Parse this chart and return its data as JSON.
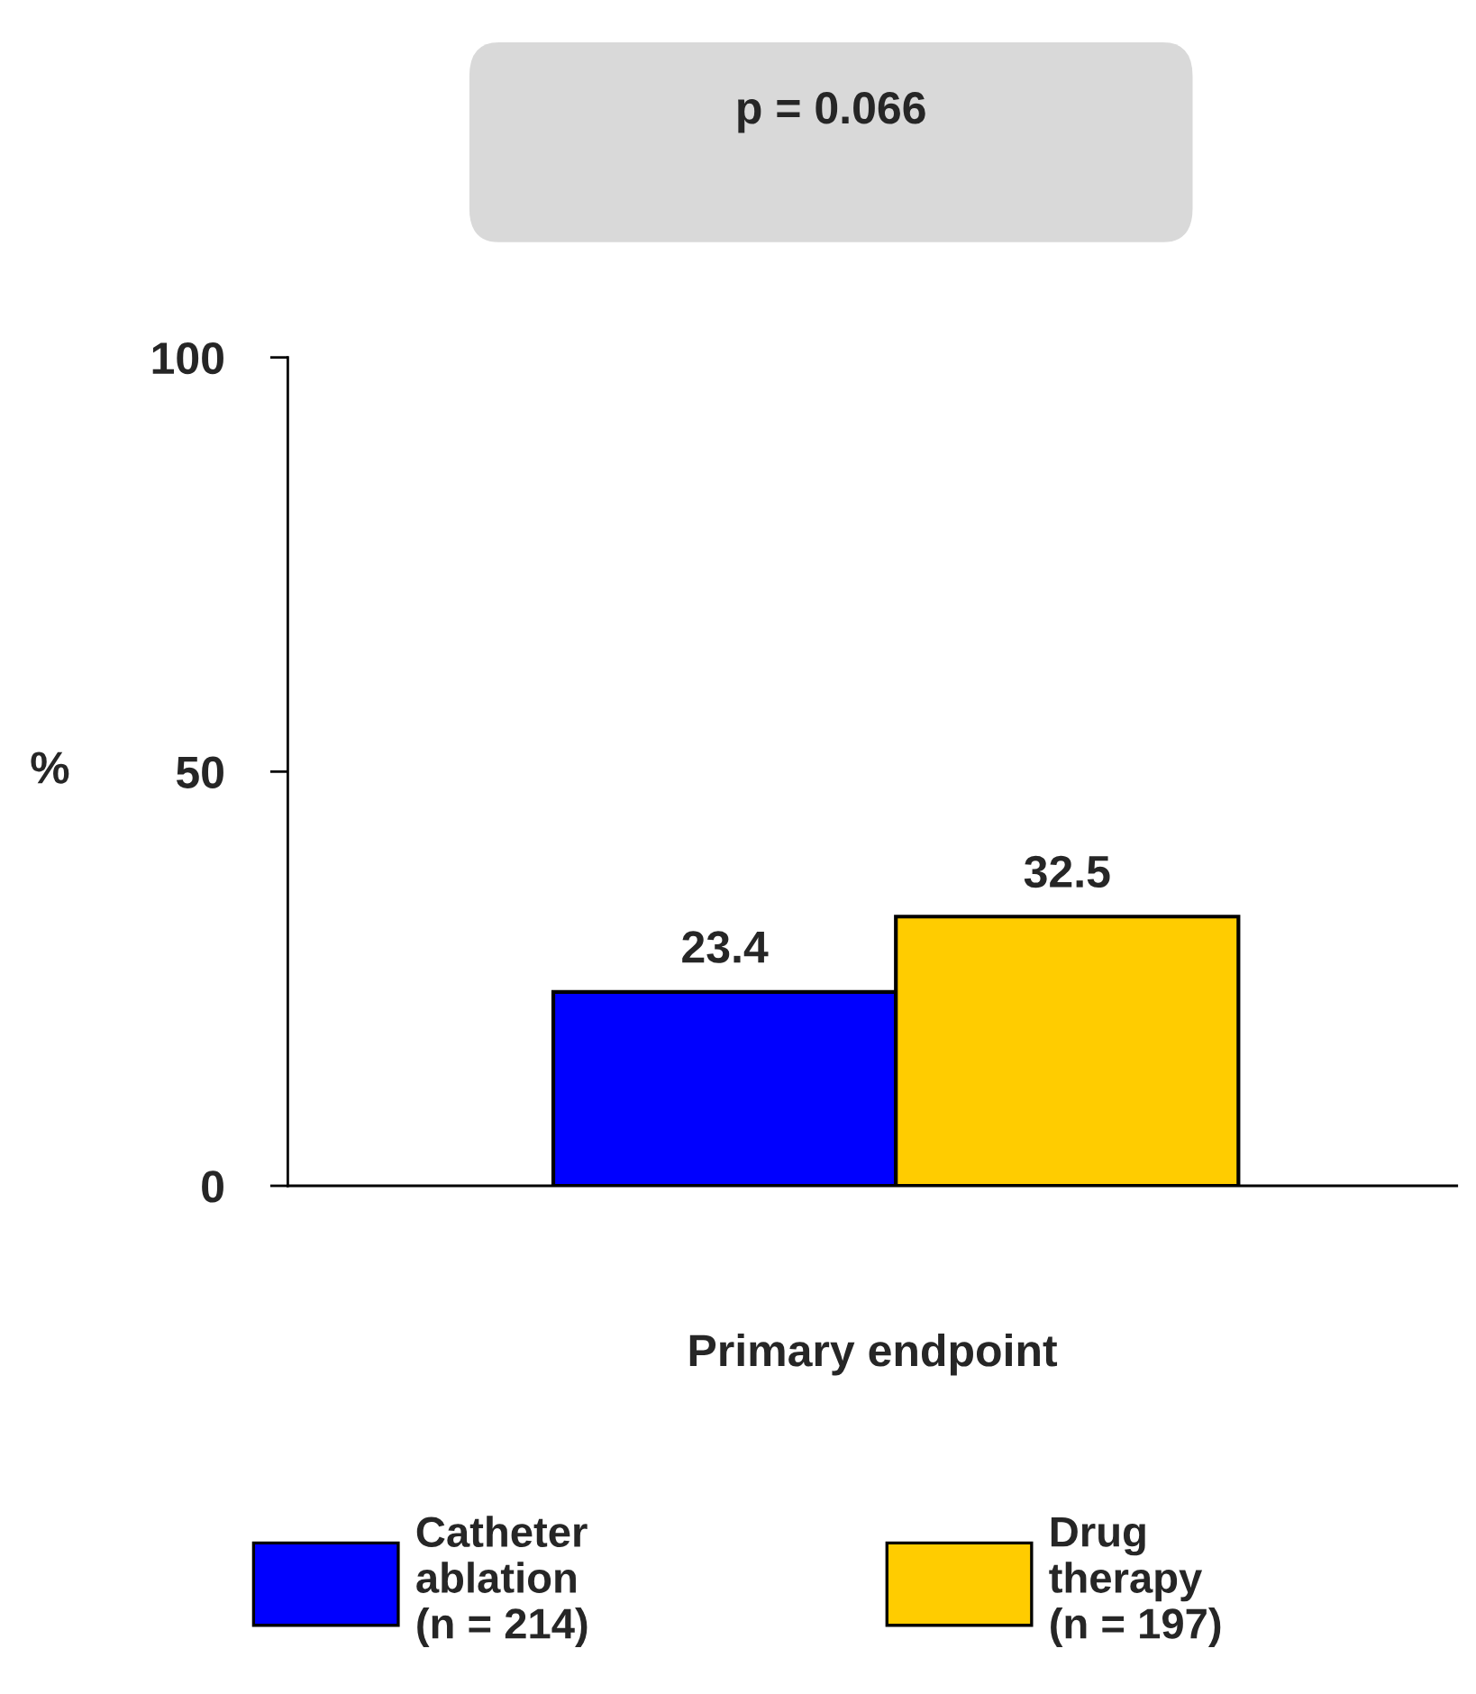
{
  "chart_data": {
    "type": "bar",
    "categories": [
      null
    ],
    "xlabel": "Primary endpoint",
    "series": [
      {
        "name": "Catheter\nablation\n(n = 214)",
        "color": "#0000ff",
        "values": [
          23.4
        ]
      },
      {
        "name": "Drug\ntherapy\n(n = 197)",
        "color": "#ffcc00",
        "values": [
          32.5
        ]
      }
    ],
    "ylabel": "%",
    "ylim": [
      0,
      100
    ],
    "yticks": [
      0,
      50,
      100
    ],
    "data_labels": true,
    "legend": "bottom",
    "grid": false,
    "annotations": [
      "p = 0.066"
    ]
  }
}
